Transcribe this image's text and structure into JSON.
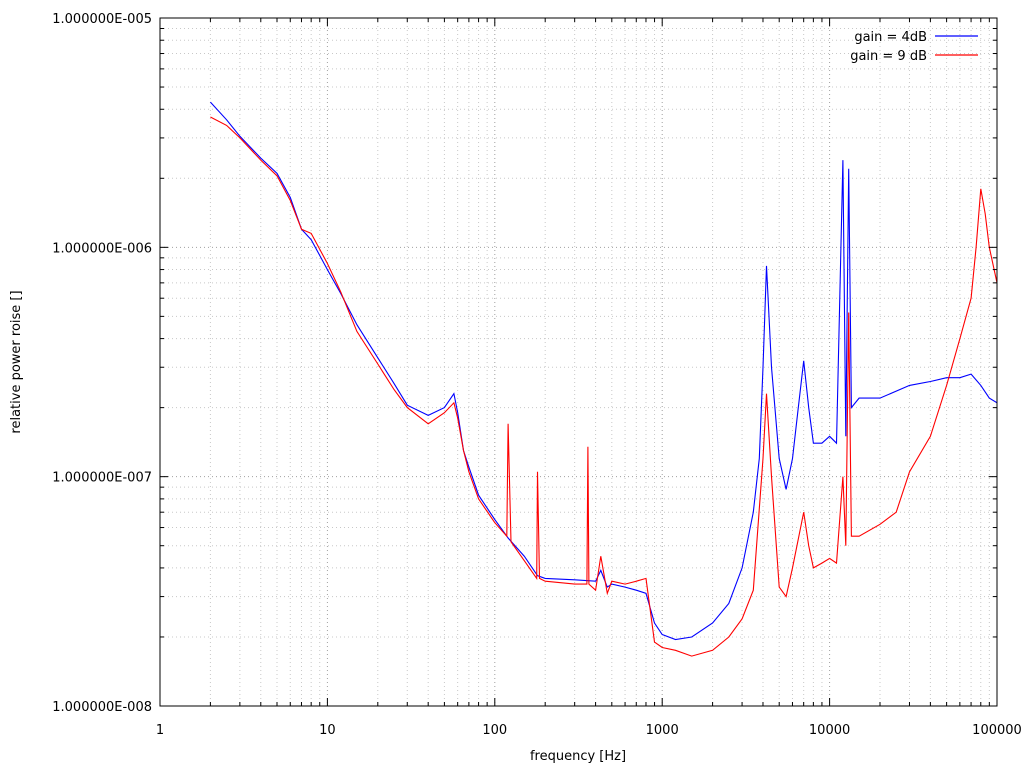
{
  "chart_data": {
    "type": "line",
    "xlabel": "frequency [Hz]",
    "ylabel": "relative power roise []",
    "x_scale": "log",
    "y_scale": "log",
    "xlim": [
      1,
      100000
    ],
    "ylim": [
      1e-08,
      1e-05
    ],
    "grid": true,
    "legend_position": "top-right",
    "x_tick_labels": [
      "1",
      "10",
      "100",
      "1000",
      "10000",
      "100000"
    ],
    "x_tick_values": [
      1,
      10,
      100,
      1000,
      10000,
      100000
    ],
    "y_tick_labels": [
      "1.000000E-008",
      "1.000000E-007",
      "1.000000E-006",
      "1.000000E-005"
    ],
    "y_tick_values": [
      1e-08,
      1e-07,
      1e-06,
      1e-05
    ],
    "series": [
      {
        "name": "gain = 4dB",
        "color": "#0000ff",
        "points": [
          [
            2,
            4.3e-06
          ],
          [
            2.5,
            3.6e-06
          ],
          [
            3,
            3.05e-06
          ],
          [
            4,
            2.45e-06
          ],
          [
            5,
            2.1e-06
          ],
          [
            6,
            1.65e-06
          ],
          [
            7,
            1.2e-06
          ],
          [
            8,
            1.08e-06
          ],
          [
            10,
            8e-07
          ],
          [
            12,
            6.3e-07
          ],
          [
            15,
            4.6e-07
          ],
          [
            20,
            3.3e-07
          ],
          [
            25,
            2.55e-07
          ],
          [
            30,
            2.05e-07
          ],
          [
            40,
            1.85e-07
          ],
          [
            50,
            2e-07
          ],
          [
            57,
            2.3e-07
          ],
          [
            60,
            1.9e-07
          ],
          [
            65,
            1.3e-07
          ],
          [
            70,
            1.1e-07
          ],
          [
            80,
            8.3e-08
          ],
          [
            100,
            6.5e-08
          ],
          [
            120,
            5.4e-08
          ],
          [
            150,
            4.5e-08
          ],
          [
            180,
            3.7e-08
          ],
          [
            200,
            3.6e-08
          ],
          [
            300,
            3.55e-08
          ],
          [
            400,
            3.5e-08
          ],
          [
            430,
            3.9e-08
          ],
          [
            470,
            3.3e-08
          ],
          [
            500,
            3.4e-08
          ],
          [
            600,
            3.3e-08
          ],
          [
            700,
            3.2e-08
          ],
          [
            800,
            3.1e-08
          ],
          [
            900,
            2.3e-08
          ],
          [
            1000,
            2.05e-08
          ],
          [
            1200,
            1.95e-08
          ],
          [
            1500,
            2e-08
          ],
          [
            2000,
            2.3e-08
          ],
          [
            2500,
            2.8e-08
          ],
          [
            3000,
            4e-08
          ],
          [
            3500,
            7e-08
          ],
          [
            3800,
            1.2e-07
          ],
          [
            4000,
            3e-07
          ],
          [
            4200,
            8.3e-07
          ],
          [
            4500,
            3e-07
          ],
          [
            5000,
            1.2e-07
          ],
          [
            5500,
            8.8e-08
          ],
          [
            6000,
            1.2e-07
          ],
          [
            6500,
            2e-07
          ],
          [
            7000,
            3.2e-07
          ],
          [
            7500,
            2e-07
          ],
          [
            8000,
            1.4e-07
          ],
          [
            9000,
            1.4e-07
          ],
          [
            10000,
            1.5e-07
          ],
          [
            11000,
            1.4e-07
          ],
          [
            12000,
            2.4e-06
          ],
          [
            12500,
            1.5e-07
          ],
          [
            13000,
            2.2e-06
          ],
          [
            13500,
            2e-07
          ],
          [
            15000,
            2.2e-07
          ],
          [
            20000,
            2.2e-07
          ],
          [
            30000,
            2.5e-07
          ],
          [
            40000,
            2.6e-07
          ],
          [
            50000,
            2.7e-07
          ],
          [
            60000,
            2.7e-07
          ],
          [
            70000,
            2.8e-07
          ],
          [
            80000,
            2.5e-07
          ],
          [
            90000,
            2.2e-07
          ],
          [
            100000,
            2.1e-07
          ]
        ]
      },
      {
        "name": "gain = 9 dB",
        "color": "#ff0000",
        "points": [
          [
            2,
            3.7e-06
          ],
          [
            2.5,
            3.4e-06
          ],
          [
            3,
            3e-06
          ],
          [
            4,
            2.4e-06
          ],
          [
            5,
            2.05e-06
          ],
          [
            6,
            1.6e-06
          ],
          [
            7,
            1.2e-06
          ],
          [
            8,
            1.15e-06
          ],
          [
            10,
            8.5e-07
          ],
          [
            12,
            6.4e-07
          ],
          [
            15,
            4.3e-07
          ],
          [
            20,
            3.1e-07
          ],
          [
            25,
            2.4e-07
          ],
          [
            30,
            2e-07
          ],
          [
            40,
            1.7e-07
          ],
          [
            50,
            1.9e-07
          ],
          [
            57,
            2.1e-07
          ],
          [
            60,
            1.8e-07
          ],
          [
            65,
            1.3e-07
          ],
          [
            70,
            1.05e-07
          ],
          [
            80,
            8e-08
          ],
          [
            100,
            6.3e-08
          ],
          [
            118,
            5.5e-08
          ],
          [
            120,
            1.7e-07
          ],
          [
            125,
            5.2e-08
          ],
          [
            150,
            4.3e-08
          ],
          [
            178,
            3.6e-08
          ],
          [
            180,
            1.05e-07
          ],
          [
            185,
            3.6e-08
          ],
          [
            200,
            3.5e-08
          ],
          [
            300,
            3.4e-08
          ],
          [
            355,
            3.4e-08
          ],
          [
            360,
            1.35e-07
          ],
          [
            365,
            3.4e-08
          ],
          [
            400,
            3.2e-08
          ],
          [
            430,
            4.5e-08
          ],
          [
            470,
            3.1e-08
          ],
          [
            500,
            3.5e-08
          ],
          [
            600,
            3.4e-08
          ],
          [
            700,
            3.5e-08
          ],
          [
            800,
            3.6e-08
          ],
          [
            900,
            1.9e-08
          ],
          [
            1000,
            1.8e-08
          ],
          [
            1200,
            1.75e-08
          ],
          [
            1500,
            1.65e-08
          ],
          [
            2000,
            1.75e-08
          ],
          [
            2500,
            2e-08
          ],
          [
            3000,
            2.4e-08
          ],
          [
            3500,
            3.2e-08
          ],
          [
            4000,
            1.2e-07
          ],
          [
            4200,
            2.3e-07
          ],
          [
            4500,
            1e-07
          ],
          [
            5000,
            3.3e-08
          ],
          [
            5500,
            3e-08
          ],
          [
            6000,
            4e-08
          ],
          [
            7000,
            7e-08
          ],
          [
            7500,
            5e-08
          ],
          [
            8000,
            4e-08
          ],
          [
            9000,
            4.2e-08
          ],
          [
            10000,
            4.4e-08
          ],
          [
            11000,
            4.2e-08
          ],
          [
            12000,
            1e-07
          ],
          [
            12500,
            5e-08
          ],
          [
            13000,
            5.2e-07
          ],
          [
            13500,
            5.5e-08
          ],
          [
            15000,
            5.5e-08
          ],
          [
            20000,
            6.2e-08
          ],
          [
            25000,
            7e-08
          ],
          [
            30000,
            1.05e-07
          ],
          [
            40000,
            1.5e-07
          ],
          [
            50000,
            2.5e-07
          ],
          [
            60000,
            4e-07
          ],
          [
            70000,
            6e-07
          ],
          [
            75000,
            1e-06
          ],
          [
            80000,
            1.8e-06
          ],
          [
            85000,
            1.4e-06
          ],
          [
            90000,
            1e-06
          ],
          [
            100000,
            7e-07
          ]
        ]
      }
    ]
  }
}
